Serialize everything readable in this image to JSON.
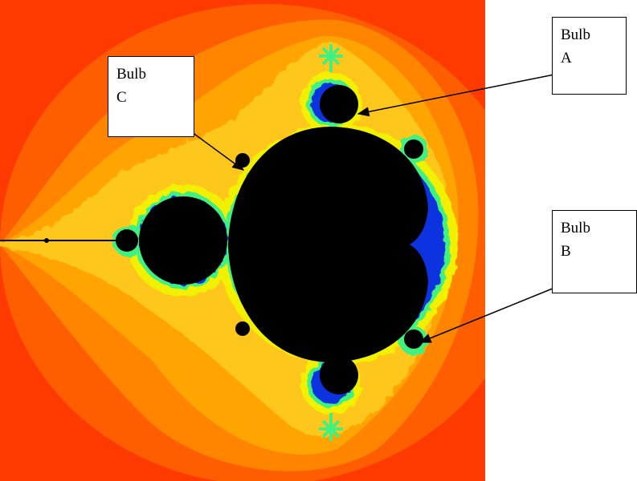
{
  "image": {
    "subject": "mandelbrot-set",
    "colors": {
      "set": "#000000",
      "outer": "#ff3a00",
      "band2": "#ff5e00",
      "band3": "#ff8400",
      "band4": "#ffa400",
      "band5": "#ffc61a",
      "edge_yellow": "#f0f000",
      "edge_green": "#40f080",
      "edge_blue": "#1030e0",
      "arrow": "#000000",
      "callout_fill": "#ffffff"
    }
  },
  "callouts": [
    {
      "id": "A",
      "line1": "Bulb",
      "line2": "A"
    },
    {
      "id": "B",
      "line1": "Bulb",
      "line2": "B"
    },
    {
      "id": "C",
      "line1": "Bulb",
      "line2": "C"
    }
  ]
}
